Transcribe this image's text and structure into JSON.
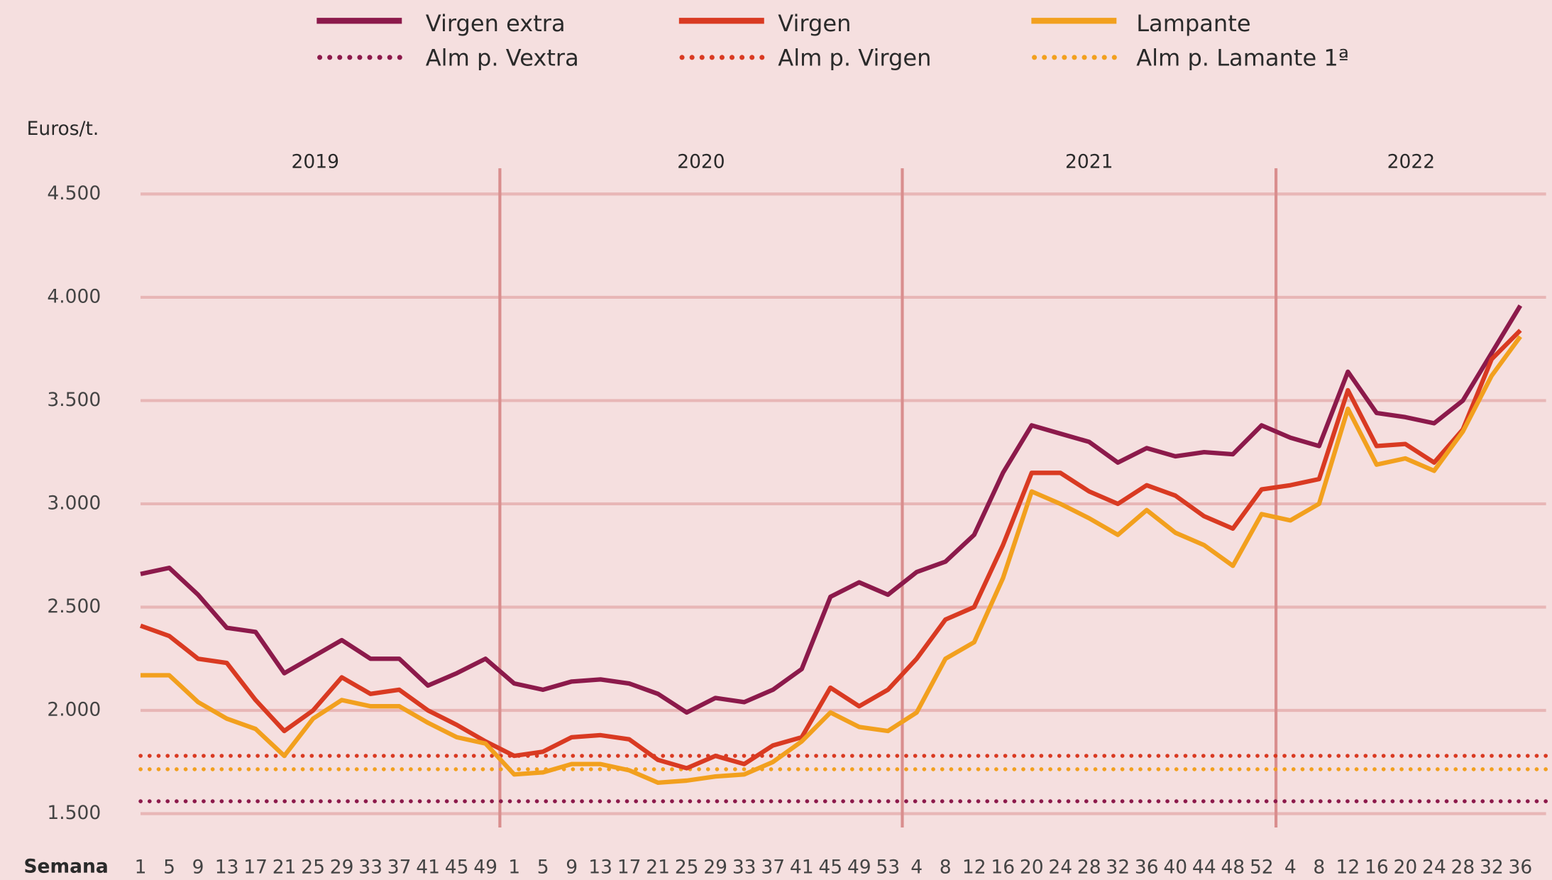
{
  "chart_data": {
    "type": "line",
    "y_label": "Euros/t.",
    "x_label": "Semana",
    "years": [
      "2019",
      "2020",
      "2021",
      "2022"
    ],
    "categories": [
      "1",
      "5",
      "9",
      "13",
      "17",
      "21",
      "25",
      "29",
      "33",
      "37",
      "41",
      "45",
      "49",
      "1",
      "5",
      "9",
      "13",
      "17",
      "21",
      "25",
      "29",
      "33",
      "37",
      "41",
      "45",
      "49",
      "53",
      "4",
      "8",
      "12",
      "16",
      "20",
      "24",
      "28",
      "32",
      "36",
      "40",
      "44",
      "48",
      "52",
      "4",
      "8",
      "12",
      "16",
      "20",
      "24",
      "28",
      "32",
      "36"
    ],
    "series": [
      {
        "name": "Virgen extra",
        "color": "#8c1a4b",
        "values": [
          2660,
          2690,
          2560,
          2400,
          2380,
          2180,
          2260,
          2340,
          2250,
          2250,
          2120,
          2180,
          2250,
          2130,
          2100,
          2140,
          2150,
          2130,
          2080,
          1990,
          2060,
          2040,
          2100,
          2200,
          2550,
          2620,
          2560,
          2670,
          2720,
          2850,
          3150,
          3380,
          3340,
          3300,
          3200,
          3270,
          3230,
          3250,
          3240,
          3380,
          3320,
          3280,
          3640,
          3440,
          3420,
          3390,
          3500,
          3730,
          3960
        ]
      },
      {
        "name": "Virgen",
        "color": "#d93a22",
        "values": [
          2410,
          2360,
          2250,
          2230,
          2050,
          1900,
          2000,
          2160,
          2080,
          2100,
          2000,
          1930,
          1850,
          1780,
          1800,
          1870,
          1880,
          1860,
          1760,
          1720,
          1780,
          1740,
          1830,
          1870,
          2110,
          2020,
          2100,
          2250,
          2440,
          2500,
          2800,
          3150,
          3150,
          3060,
          3000,
          3090,
          3040,
          2940,
          2880,
          3070,
          3090,
          3120,
          3550,
          3280,
          3290,
          3200,
          3360,
          3700,
          3840
        ]
      },
      {
        "name": "Lampante",
        "color": "#f2a01e",
        "values": [
          2170,
          2170,
          2040,
          1960,
          1910,
          1780,
          1960,
          2050,
          2020,
          2020,
          1940,
          1870,
          1840,
          1690,
          1700,
          1740,
          1740,
          1710,
          1650,
          1660,
          1680,
          1690,
          1750,
          1850,
          1990,
          1920,
          1900,
          1990,
          2250,
          2330,
          2640,
          3060,
          3000,
          2930,
          2850,
          2970,
          2860,
          2800,
          2700,
          2950,
          2920,
          3000,
          3460,
          3190,
          3220,
          3160,
          3350,
          3620,
          3810
        ]
      }
    ],
    "reference_lines": [
      {
        "name": "Alm p. Vextra",
        "color": "#8c1a4b",
        "value": 1560
      },
      {
        "name": "Alm p. Virgen",
        "color": "#d93a22",
        "value": 1780
      },
      {
        "name": "Alm p. Lamante 1ª",
        "color": "#f2a01e",
        "value": 1715
      }
    ],
    "ylim": [
      1500,
      4500
    ],
    "yticks": [
      {
        "value": 1500,
        "label": "1.500"
      },
      {
        "value": 2000,
        "label": "2.000"
      },
      {
        "value": 2500,
        "label": "2.500"
      },
      {
        "value": 3000,
        "label": "3.000"
      },
      {
        "value": 3500,
        "label": "3.500"
      },
      {
        "value": 4000,
        "label": "4.000"
      },
      {
        "value": 4500,
        "label": "4.500"
      }
    ],
    "grid": true
  }
}
